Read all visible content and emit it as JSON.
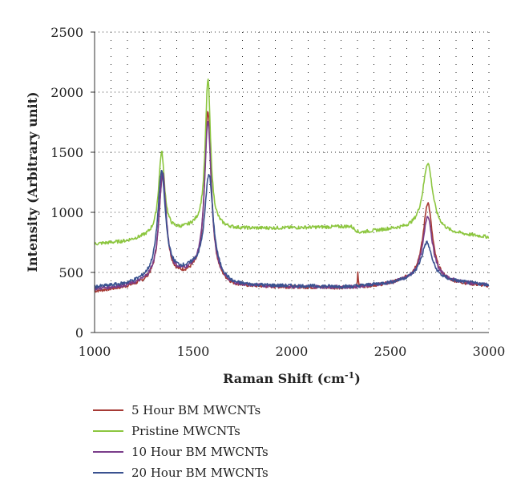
{
  "chart_data": {
    "type": "line",
    "xlabel": "Raman Shift (cm",
    "xlabel_sup": "-1",
    "xlabel_close": ")",
    "ylabel": "Intensity (Arbitrary unit)",
    "xlim": [
      1000,
      3000
    ],
    "ylim": [
      0,
      2500
    ],
    "xticks": [
      1000,
      1500,
      2000,
      2500,
      3000
    ],
    "yticks": [
      0,
      500,
      1000,
      1500,
      2000,
      2500
    ],
    "grid": "dotted",
    "legend_position": "bottom",
    "series": [
      {
        "name": "5 Hour BM MWCNTs",
        "color": "#a63a35",
        "baseline": [
          [
            1000,
            340
          ],
          [
            1150,
            370
          ],
          [
            1500,
            470
          ],
          [
            1700,
            380
          ],
          [
            2300,
            370
          ],
          [
            2500,
            400
          ],
          [
            2650,
            450
          ],
          [
            2800,
            410
          ],
          [
            3000,
            385
          ]
        ],
        "peaks": [
          [
            1345,
            900,
            22
          ],
          [
            1575,
            1400,
            20
          ],
          [
            2690,
            640,
            28
          ],
          [
            2335,
            110,
            3
          ]
        ]
      },
      {
        "name": "Pristine MWCNTs",
        "color": "#8cc63f",
        "baseline": [
          [
            1000,
            735
          ],
          [
            1150,
            755
          ],
          [
            1500,
            870
          ],
          [
            1700,
            860
          ],
          [
            2000,
            870
          ],
          [
            2300,
            880
          ],
          [
            2340,
            830
          ],
          [
            2500,
            855
          ],
          [
            2650,
            860
          ],
          [
            2800,
            820
          ],
          [
            3000,
            790
          ]
        ],
        "peaks": [
          [
            1340,
            680,
            18
          ],
          [
            1575,
            1240,
            16
          ],
          [
            2690,
            560,
            30
          ]
        ]
      },
      {
        "name": "10 Hour BM MWCNTs",
        "color": "#7a3d8a",
        "baseline": [
          [
            1000,
            360
          ],
          [
            1150,
            380
          ],
          [
            1500,
            490
          ],
          [
            1700,
            385
          ],
          [
            2300,
            375
          ],
          [
            2500,
            405
          ],
          [
            2650,
            450
          ],
          [
            2800,
            420
          ],
          [
            3000,
            390
          ]
        ],
        "peaks": [
          [
            1345,
            880,
            22
          ],
          [
            1575,
            1300,
            21
          ],
          [
            2690,
            530,
            28
          ]
        ]
      },
      {
        "name": "20 Hour BM MWCNTs",
        "color": "#3a5290",
        "baseline": [
          [
            1000,
            375
          ],
          [
            1150,
            395
          ],
          [
            1500,
            510
          ],
          [
            1700,
            390
          ],
          [
            2300,
            380
          ],
          [
            2500,
            410
          ],
          [
            2650,
            455
          ],
          [
            2800,
            425
          ],
          [
            3000,
            395
          ]
        ],
        "peaks": [
          [
            1340,
            870,
            24
          ],
          [
            1580,
            850,
            26
          ],
          [
            2685,
            300,
            32
          ]
        ]
      }
    ]
  }
}
